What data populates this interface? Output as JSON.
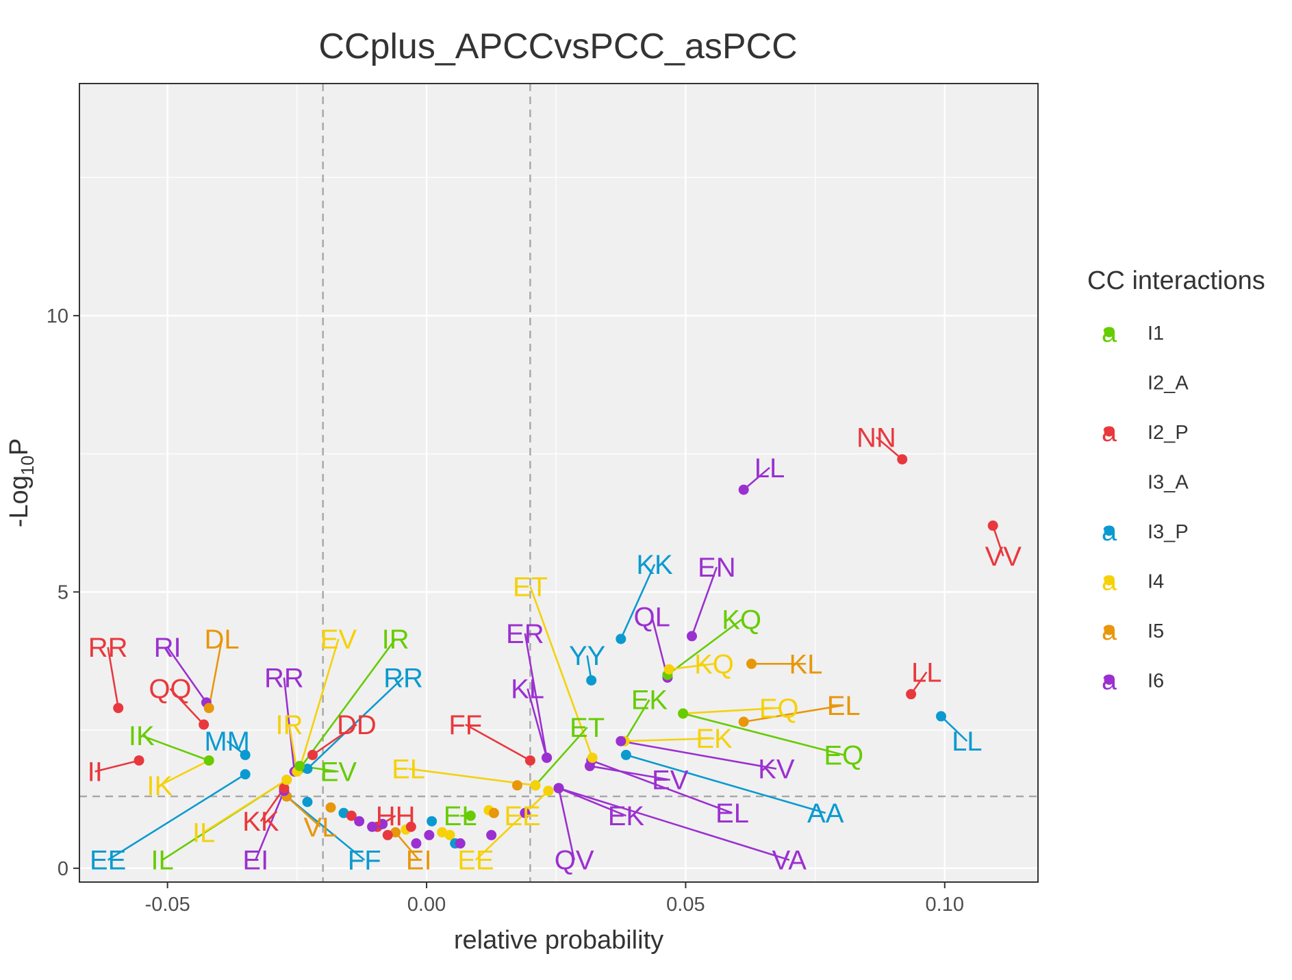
{
  "chart_data": {
    "type": "scatter",
    "title": "CCplus_APCCvsPCC_asPCC",
    "xlabel": "relative probability",
    "ylabel": "-Log10P",
    "ylabel_parts": [
      "-Log",
      "10",
      "P"
    ],
    "xlim": [
      -0.067,
      0.118
    ],
    "ylim": [
      -0.25,
      14.2
    ],
    "xticks": [
      -0.05,
      0.0,
      0.05,
      0.1
    ],
    "xtick_labels": [
      "-0.05",
      "0.00",
      "0.05",
      "0.10"
    ],
    "yticks": [
      0,
      5,
      10
    ],
    "ytick_labels": [
      "0",
      "5",
      "10"
    ],
    "threshold_lines": {
      "vertical": [
        -0.02,
        0.02
      ],
      "horizontal": 1.3
    },
    "grid": true,
    "legend": {
      "title": "CC interactions",
      "position": "right",
      "key_glyph": "a",
      "entries": [
        {
          "name": "I1",
          "color": "#66cc00",
          "shown": true
        },
        {
          "name": "I2_A",
          "color": "#ffffff",
          "shown": false
        },
        {
          "name": "I2_P",
          "color": "#e8383d",
          "shown": true
        },
        {
          "name": "I3_A",
          "color": "#ffffff",
          "shown": false
        },
        {
          "name": "I3_P",
          "color": "#0a9ad0",
          "shown": true
        },
        {
          "name": "I4",
          "color": "#f5d10a",
          "shown": true
        },
        {
          "name": "I5",
          "color": "#e8960a",
          "shown": true
        },
        {
          "name": "I6",
          "color": "#9b30d0",
          "shown": true
        }
      ]
    },
    "points": [
      {
        "x": 0.0918,
        "y": 7.4,
        "group": "I2_P",
        "label": "NN",
        "lx": 0.0868,
        "ly": 7.8
      },
      {
        "x": 0.1093,
        "y": 6.2,
        "group": "I2_P",
        "label": "VV",
        "lx": 0.1113,
        "ly": 5.65
      },
      {
        "x": 0.0612,
        "y": 6.85,
        "group": "I6",
        "label": "LL",
        "lx": 0.0662,
        "ly": 7.25
      },
      {
        "x": 0.0375,
        "y": 4.15,
        "group": "I3_P",
        "label": "KK",
        "lx": 0.044,
        "ly": 5.5
      },
      {
        "x": 0.0512,
        "y": 4.2,
        "group": "I6",
        "label": "EN",
        "lx": 0.056,
        "ly": 5.45
      },
      {
        "x": 0.0465,
        "y": 3.45,
        "group": "I6",
        "label": "QL",
        "lx": 0.0435,
        "ly": 4.55
      },
      {
        "x": 0.0465,
        "y": 3.5,
        "group": "I1",
        "label": "KQ",
        "lx": 0.0608,
        "ly": 4.5
      },
      {
        "x": 0.0318,
        "y": 3.4,
        "group": "I3_P",
        "label": "YY",
        "lx": 0.031,
        "ly": 3.85
      },
      {
        "x": 0.0468,
        "y": 3.6,
        "group": "I4",
        "label": "KQ",
        "lx": 0.0555,
        "ly": 3.7
      },
      {
        "x": 0.0627,
        "y": 3.7,
        "group": "I5",
        "label": "KL",
        "lx": 0.0732,
        "ly": 3.7
      },
      {
        "x": 0.0935,
        "y": 3.15,
        "group": "I2_P",
        "label": "LL",
        "lx": 0.0965,
        "ly": 3.55
      },
      {
        "x": 0.0993,
        "y": 2.75,
        "group": "I3_P",
        "label": "LL",
        "lx": 0.1043,
        "ly": 2.3
      },
      {
        "x": 0.0495,
        "y": 2.8,
        "group": "I4",
        "label": "EQ",
        "lx": 0.068,
        "ly": 2.9
      },
      {
        "x": 0.0612,
        "y": 2.65,
        "group": "I5",
        "label": "EL",
        "lx": 0.0805,
        "ly": 2.95
      },
      {
        "x": 0.0382,
        "y": 2.3,
        "group": "I1",
        "label": "EK",
        "lx": 0.043,
        "ly": 3.05
      },
      {
        "x": 0.0382,
        "y": 2.3,
        "group": "I4",
        "label": "EK",
        "lx": 0.0555,
        "ly": 2.35
      },
      {
        "x": 0.0495,
        "y": 2.8,
        "group": "I1",
        "label": "EQ",
        "lx": 0.0805,
        "ly": 2.05
      },
      {
        "x": 0.0375,
        "y": 2.3,
        "group": "I6",
        "label": "KV",
        "lx": 0.0675,
        "ly": 1.8
      },
      {
        "x": 0.0385,
        "y": 2.05,
        "group": "I3_P",
        "label": "AA",
        "lx": 0.077,
        "ly": 1.0
      },
      {
        "x": 0.0315,
        "y": 1.85,
        "group": "I6",
        "label": "EV",
        "lx": 0.047,
        "ly": 1.6
      },
      {
        "x": 0.0318,
        "y": 1.95,
        "group": "I6",
        "label": "EL",
        "lx": 0.059,
        "ly": 1.0
      },
      {
        "x": 0.0255,
        "y": 1.45,
        "group": "I6",
        "label": "EK",
        "lx": 0.0385,
        "ly": 0.95
      },
      {
        "x": 0.0255,
        "y": 1.45,
        "group": "I6",
        "label": "VA",
        "lx": 0.07,
        "ly": 0.15
      },
      {
        "x": 0.0255,
        "y": 1.45,
        "group": "I6",
        "label": "QV",
        "lx": 0.0285,
        "ly": 0.15
      },
      {
        "x": 0.032,
        "y": 2.0,
        "group": "I4",
        "label": "ET",
        "lx": 0.02,
        "ly": 5.1
      },
      {
        "x": 0.0232,
        "y": 2.0,
        "group": "I6",
        "label": "ER",
        "lx": 0.019,
        "ly": 4.25
      },
      {
        "x": 0.0232,
        "y": 2.0,
        "group": "I6",
        "label": "KL",
        "lx": 0.0195,
        "ly": 3.25
      },
      {
        "x": 0.02,
        "y": 1.95,
        "group": "I2_P",
        "label": "FF",
        "lx": 0.0075,
        "ly": 2.6
      },
      {
        "x": 0.021,
        "y": 1.5,
        "group": "I1",
        "label": "ET",
        "lx": 0.031,
        "ly": 2.55
      },
      {
        "x": 0.021,
        "y": 1.5,
        "group": "I4",
        "label": "EL",
        "lx": -0.0035,
        "ly": 1.8
      },
      {
        "x": 0.0085,
        "y": 0.95,
        "group": "I1",
        "label": "EL",
        "lx": 0.0065,
        "ly": 0.95
      },
      {
        "x": 0.0235,
        "y": 1.4,
        "group": "I4",
        "label": "EE",
        "lx": 0.0185,
        "ly": 0.95
      },
      {
        "x": 0.0235,
        "y": 1.4,
        "group": "I4",
        "label": "EE",
        "lx": 0.0095,
        "ly": 0.15
      },
      {
        "x": -0.006,
        "y": 0.65,
        "group": "I5",
        "label": "EI",
        "lx": -0.0015,
        "ly": 0.15
      },
      {
        "x": -0.0095,
        "y": 0.75,
        "group": "I2_P",
        "label": "HH",
        "lx": -0.006,
        "ly": 0.95
      },
      {
        "x": -0.027,
        "y": 1.3,
        "group": "I3_P",
        "label": "FF",
        "lx": -0.012,
        "ly": 0.15
      },
      {
        "x": -0.027,
        "y": 1.3,
        "group": "I5",
        "label": "VL",
        "lx": -0.0205,
        "ly": 0.75
      },
      {
        "x": -0.0275,
        "y": 1.4,
        "group": "I6",
        "label": "EI",
        "lx": -0.033,
        "ly": 0.15
      },
      {
        "x": -0.0275,
        "y": 1.45,
        "group": "I2_P",
        "label": "KK",
        "lx": -0.032,
        "ly": 0.85
      },
      {
        "x": -0.027,
        "y": 1.6,
        "group": "I1",
        "label": "IL",
        "lx": -0.051,
        "ly": 0.15
      },
      {
        "x": -0.027,
        "y": 1.6,
        "group": "I4",
        "label": "IL",
        "lx": -0.043,
        "ly": 0.65
      },
      {
        "x": -0.035,
        "y": 1.7,
        "group": "I3_P",
        "label": "EE",
        "lx": -0.0615,
        "ly": 0.15
      },
      {
        "x": -0.042,
        "y": 1.95,
        "group": "I4",
        "label": "IK",
        "lx": -0.0515,
        "ly": 1.5
      },
      {
        "x": -0.042,
        "y": 1.95,
        "group": "I1",
        "label": "IK",
        "lx": -0.055,
        "ly": 2.4
      },
      {
        "x": -0.0555,
        "y": 1.95,
        "group": "I2_P",
        "label": "II",
        "lx": -0.064,
        "ly": 1.75
      },
      {
        "x": -0.035,
        "y": 2.05,
        "group": "I3_P",
        "label": "MM",
        "lx": -0.0385,
        "ly": 2.3
      },
      {
        "x": -0.0595,
        "y": 2.9,
        "group": "I2_P",
        "label": "RR",
        "lx": -0.0615,
        "ly": 4.0
      },
      {
        "x": -0.0425,
        "y": 3.0,
        "group": "I6",
        "label": "RI",
        "lx": -0.05,
        "ly": 4.0
      },
      {
        "x": -0.043,
        "y": 2.6,
        "group": "I2_P",
        "label": "QQ",
        "lx": -0.0495,
        "ly": 3.25
      },
      {
        "x": -0.042,
        "y": 2.9,
        "group": "I5",
        "label": "DL",
        "lx": -0.0395,
        "ly": 4.15
      },
      {
        "x": -0.0255,
        "y": 1.75,
        "group": "I6",
        "label": "RR",
        "lx": -0.0275,
        "ly": 3.45
      },
      {
        "x": -0.0245,
        "y": 1.8,
        "group": "I4",
        "label": "EV",
        "lx": -0.017,
        "ly": 4.15
      },
      {
        "x": -0.0245,
        "y": 1.8,
        "group": "I1",
        "label": "IR",
        "lx": -0.006,
        "ly": 4.15
      },
      {
        "x": -0.023,
        "y": 1.8,
        "group": "I3_P",
        "label": "RR",
        "lx": -0.0045,
        "ly": 3.45
      },
      {
        "x": -0.025,
        "y": 1.75,
        "group": "I4",
        "label": "IR",
        "lx": -0.0265,
        "ly": 2.6
      },
      {
        "x": -0.022,
        "y": 2.05,
        "group": "I2_P",
        "label": "DD",
        "lx": -0.0135,
        "ly": 2.6
      },
      {
        "x": -0.0245,
        "y": 1.85,
        "group": "I1",
        "label": "EV",
        "lx": -0.017,
        "ly": 1.75
      },
      {
        "x": -0.023,
        "y": 1.2,
        "group": "I3_P"
      },
      {
        "x": -0.0185,
        "y": 1.1,
        "group": "I5"
      },
      {
        "x": -0.016,
        "y": 1.0,
        "group": "I3_P"
      },
      {
        "x": -0.0145,
        "y": 0.95,
        "group": "I2_P"
      },
      {
        "x": -0.013,
        "y": 0.85,
        "group": "I6"
      },
      {
        "x": -0.0105,
        "y": 0.75,
        "group": "I6"
      },
      {
        "x": -0.0085,
        "y": 0.8,
        "group": "I6"
      },
      {
        "x": -0.0075,
        "y": 0.6,
        "group": "I2_P"
      },
      {
        "x": -0.004,
        "y": 0.7,
        "group": "I4"
      },
      {
        "x": -0.003,
        "y": 0.75,
        "group": "I2_P"
      },
      {
        "x": -0.002,
        "y": 0.45,
        "group": "I6"
      },
      {
        "x": 0.0005,
        "y": 0.6,
        "group": "I6"
      },
      {
        "x": 0.001,
        "y": 0.85,
        "group": "I3_P"
      },
      {
        "x": 0.003,
        "y": 0.65,
        "group": "I4"
      },
      {
        "x": 0.0045,
        "y": 0.6,
        "group": "I4"
      },
      {
        "x": 0.0055,
        "y": 0.45,
        "group": "I3_P"
      },
      {
        "x": 0.0065,
        "y": 0.45,
        "group": "I6"
      },
      {
        "x": 0.012,
        "y": 1.05,
        "group": "I4"
      },
      {
        "x": 0.013,
        "y": 1.0,
        "group": "I5"
      },
      {
        "x": 0.0125,
        "y": 0.6,
        "group": "I6"
      },
      {
        "x": 0.0175,
        "y": 1.5,
        "group": "I5"
      },
      {
        "x": 0.019,
        "y": 1.0,
        "group": "I6"
      }
    ]
  }
}
